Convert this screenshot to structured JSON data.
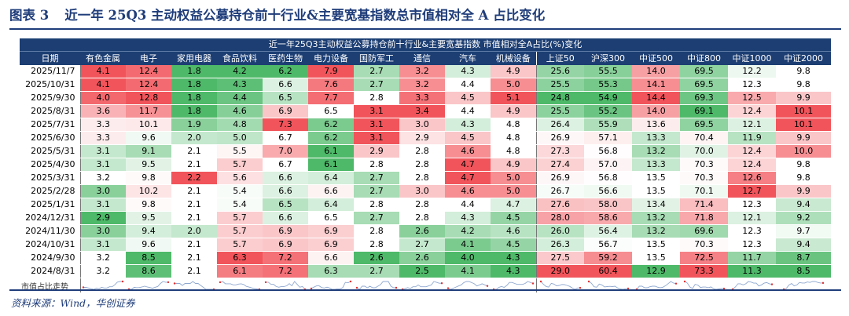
{
  "figure": {
    "number": "图表 3",
    "title": "近一年 25Q3 主动权益公募持仓前十行业&主要宽基指数总市值相对全 A 占比变化"
  },
  "table": {
    "title": "近一年25Q3主动权益公募持仓前十行业&主要宽基指数 市值相对全A占比(%)变化",
    "date_header": "日期",
    "columns": [
      "有色金属",
      "电子",
      "家用电器",
      "食品饮料",
      "医药生物",
      "电力设备",
      "国防军工",
      "通信",
      "汽车",
      "机械设备",
      "上证50",
      "沪深300",
      "中证500",
      "中证800",
      "中证1000",
      "中证2000"
    ],
    "dates": [
      "2025/11/7",
      "2025/10/31",
      "2025/9/30",
      "2025/8/31",
      "2025/7/31",
      "2025/6/30",
      "2025/5/31",
      "2025/4/30",
      "2025/3/31",
      "2025/2/28",
      "2025/1/31",
      "2024/12/31",
      "2024/11/30",
      "2024/10/31",
      "2024/9/30",
      "2024/8/31"
    ],
    "values": [
      [
        "4.1",
        "12.4",
        "1.8",
        "4.2",
        "6.2",
        "7.9",
        "2.7",
        "3.2",
        "4.3",
        "4.9",
        "25.6",
        "55.5",
        "14.0",
        "69.5",
        "12.2",
        "9.8"
      ],
      [
        "4.1",
        "12.4",
        "1.8",
        "4.3",
        "6.6",
        "7.6",
        "2.7",
        "3.2",
        "4.4",
        "5.0",
        "25.5",
        "55.3",
        "14.1",
        "69.5",
        "12.3",
        "9.8"
      ],
      [
        "4.0",
        "12.8",
        "1.8",
        "4.4",
        "6.5",
        "7.7",
        "2.8",
        "3.3",
        "4.5",
        "5.1",
        "24.8",
        "54.9",
        "14.4",
        "69.3",
        "12.5",
        "9.9"
      ],
      [
        "3.6",
        "11.7",
        "1.8",
        "4.6",
        "6.9",
        "6.5",
        "3.1",
        "3.4",
        "4.4",
        "4.9",
        "25.5",
        "55.2",
        "14.0",
        "69.1",
        "12.4",
        "10.1"
      ],
      [
        "3.3",
        "10.1",
        "1.9",
        "4.8",
        "7.3",
        "6.2",
        "3.1",
        "3.0",
        "4.3",
        "4.8",
        "26.4",
        "55.9",
        "13.6",
        "69.5",
        "12.1",
        "10.1"
      ],
      [
        "3.3",
        "9.6",
        "2.0",
        "5.0",
        "6.7",
        "6.2",
        "3.1",
        "2.9",
        "4.5",
        "4.8",
        "26.9",
        "57.1",
        "13.3",
        "70.4",
        "11.9",
        "9.9"
      ],
      [
        "3.1",
        "9.1",
        "2.1",
        "5.5",
        "7.0",
        "6.1",
        "2.9",
        "2.8",
        "4.6",
        "4.8",
        "27.3",
        "56.8",
        "13.2",
        "70.0",
        "12.4",
        "10.0"
      ],
      [
        "3.1",
        "9.5",
        "2.1",
        "5.7",
        "6.7",
        "6.1",
        "2.8",
        "2.8",
        "4.7",
        "4.9",
        "27.4",
        "57.0",
        "13.3",
        "70.3",
        "12.4",
        "9.8"
      ],
      [
        "3.2",
        "9.8",
        "2.2",
        "5.6",
        "6.6",
        "6.4",
        "2.7",
        "2.8",
        "4.7",
        "5.0",
        "26.9",
        "56.8",
        "13.5",
        "70.3",
        "12.6",
        "9.8"
      ],
      [
        "3.0",
        "10.2",
        "2.1",
        "5.4",
        "6.6",
        "6.6",
        "2.7",
        "3.0",
        "4.6",
        "5.0",
        "26.7",
        "56.6",
        "13.5",
        "70.1",
        "12.7",
        "9.9"
      ],
      [
        "3.1",
        "9.8",
        "2.1",
        "5.4",
        "6.5",
        "6.4",
        "2.8",
        "2.8",
        "4.4",
        "4.7",
        "27.6",
        "58.0",
        "13.4",
        "71.4",
        "12.3",
        "9.4"
      ],
      [
        "2.9",
        "9.5",
        "2.1",
        "5.7",
        "6.6",
        "6.5",
        "2.7",
        "2.8",
        "4.3",
        "4.5",
        "28.0",
        "58.6",
        "13.2",
        "71.8",
        "12.1",
        "9.2"
      ],
      [
        "3.0",
        "9.4",
        "2.0",
        "5.7",
        "6.9",
        "6.9",
        "2.8",
        "2.6",
        "4.2",
        "4.6",
        "26.0",
        "56.4",
        "13.2",
        "69.6",
        "12.3",
        "9.7"
      ],
      [
        "3.1",
        "9.6",
        "2.1",
        "5.7",
        "6.9",
        "6.9",
        "2.8",
        "2.7",
        "4.1",
        "4.5",
        "26.3",
        "56.7",
        "13.5",
        "70.3",
        "12.3",
        "9.4"
      ],
      [
        "3.2",
        "8.5",
        "2.1",
        "6.3",
        "7.2",
        "6.6",
        "2.6",
        "2.6",
        "4.0",
        "4.3",
        "27.5",
        "59.2",
        "13.5",
        "72.5",
        "11.7",
        "8.7"
      ],
      [
        "3.2",
        "8.6",
        "2.1",
        "6.1",
        "7.2",
        "6.3",
        "2.7",
        "2.5",
        "4.1",
        "4.3",
        "29.0",
        "60.4",
        "12.9",
        "73.3",
        "11.3",
        "8.5"
      ]
    ],
    "sparkline_label": "市值占比走势"
  },
  "colors": {
    "header_bg": "#1c3e73",
    "high_color": "#f0464d",
    "mid_color": "#ffffff",
    "low_color": "#3fb35c",
    "sparkline_line": "#8fa8d0",
    "sparkline_marker": "#e03030",
    "title_color": "#1f3d7a"
  },
  "source": "资料来源：Wind，华创证券"
}
